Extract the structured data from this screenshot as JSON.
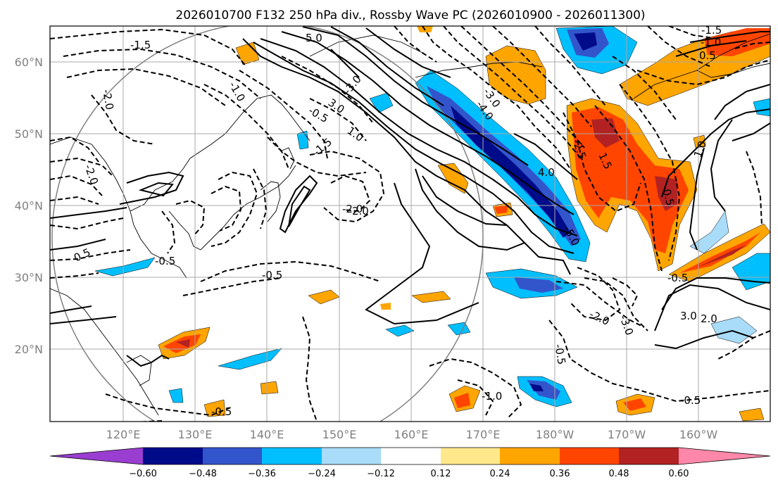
{
  "title": "2026010700 F132 250 hPa div., Rossby Wave PC (2026010900 - 2026011300)",
  "longitude_labels": [
    "120°E",
    "130°E",
    "140°E",
    "150°E",
    "160°E",
    "170°E",
    "180°W",
    "170°W",
    "160°W"
  ],
  "latitude_labels": [
    "20°N",
    "30°N",
    "40°N",
    "50°N",
    "60°N"
  ],
  "colorbar": {
    "tick_labels": [
      "−0.60",
      "−0.48",
      "−0.36",
      "−0.24",
      "−0.12",
      "0.12",
      "0.24",
      "0.36",
      "0.48",
      "0.60"
    ],
    "colors": [
      "#9a3ed1",
      "#000b8a",
      "#3355cc",
      "#00bfff",
      "#a8dcf8",
      "#ffffff",
      "#ffe88a",
      "#ffa500",
      "#ff4500",
      "#b22222",
      "#ff88aa"
    ]
  },
  "contour_labels": [
    "5.0",
    "-1.5",
    "-2.0",
    "-1.0",
    "-0.5",
    "3.0",
    "1.0",
    "-3.0",
    "-4.0",
    "2.0",
    "-5.0",
    "-2.5",
    "0.5",
    "-0.5",
    "1.5",
    "-3.0",
    "4.0",
    "-2.0",
    "0.0",
    "-1.5",
    "-1.0",
    "-0.5",
    "3.0",
    "2.0",
    "1.0",
    "-0.5",
    "-0.5",
    "-0.5",
    "-0.5",
    "0.5",
    "-2.0",
    "-3.0",
    "-2.0",
    "-1.0",
    "-0.5",
    "-1.5"
  ]
}
